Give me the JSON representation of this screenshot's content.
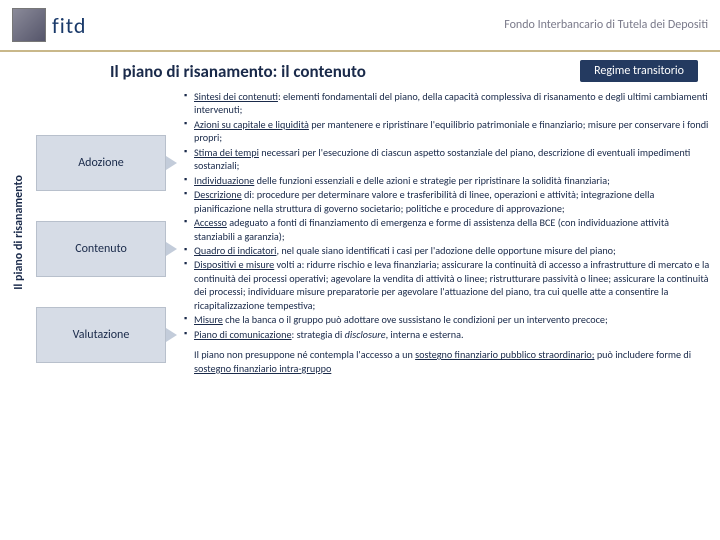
{
  "header": {
    "logo_text": "fitd",
    "org": "Fondo Interbancario di Tutela dei Depositi"
  },
  "title": "Il piano di risanamento: il contenuto",
  "badge": "Regime transitorio",
  "sidebar_label": "Il piano di risanamento",
  "boxes": [
    "Adozione",
    "Contenuto",
    "Valutazione"
  ],
  "bullets": [
    {
      "lead": "Sintesi dei contenuti",
      "rest": ": elementi fondamentali del piano, della capacità complessiva di risanamento e degli ultimi cambiamenti intervenuti;"
    },
    {
      "lead": "Azioni su capitale e liquidità",
      "rest": " per mantenere e ripristinare l'equilibrio patrimoniale e finanziario; misure per conservare i fondi propri;"
    },
    {
      "lead": "Stima dei tempi",
      "rest": " necessari per l'esecuzione di ciascun aspetto sostanziale del piano, descrizione di eventuali impedimenti sostanziali;"
    },
    {
      "lead": "Individuazione",
      "rest": " delle funzioni essenziali e delle azioni e strategie per ripristinare la solidità finanziaria;"
    },
    {
      "lead": "Descrizione",
      "rest": " di: procedure per determinare valore e trasferibilità di linee, operazioni e attività; integrazione della pianificazione nella struttura di governo societario; politiche e procedure di approvazione;"
    },
    {
      "lead": "Accesso",
      "rest": " adeguato a fonti di finanziamento di emergenza e forme di assistenza della BCE (con individuazione attività stanziabili a garanzia);"
    },
    {
      "lead": "Quadro di indicatori",
      "rest": ", nel quale siano identificati i casi per l'adozione delle opportune misure del piano;"
    },
    {
      "lead": "Dispositivi e misure",
      "rest": " volti a: ridurre rischio e leva finanziaria; assicurare la continuità di accesso a infrastrutture di mercato e la continuità dei processi operativi; agevolare la vendita di attività o linee; ristrutturare passività o linee; assicurare la continuità dei processi; individuare misure preparatorie per agevolare l'attuazione del piano, tra cui quelle atte a consentire la ricapitalizzazione tempestiva;"
    },
    {
      "lead": "Misure",
      "rest": " che la banca o il gruppo può adottare ove sussistano le condizioni per un intervento precoce;"
    },
    {
      "lead": "Piano di comunicazione",
      "rest": ": strategia di <span class=\"i\">disclosure</span>, interna e esterna."
    }
  ],
  "footnote_pre": "Il piano non presuppone né contempla l'accesso a un ",
  "footnote_u1": "sostegno finanziario pubblico straordinario;",
  "footnote_mid": " può includere forme di ",
  "footnote_u2": "sostegno finanziario intra-gruppo"
}
